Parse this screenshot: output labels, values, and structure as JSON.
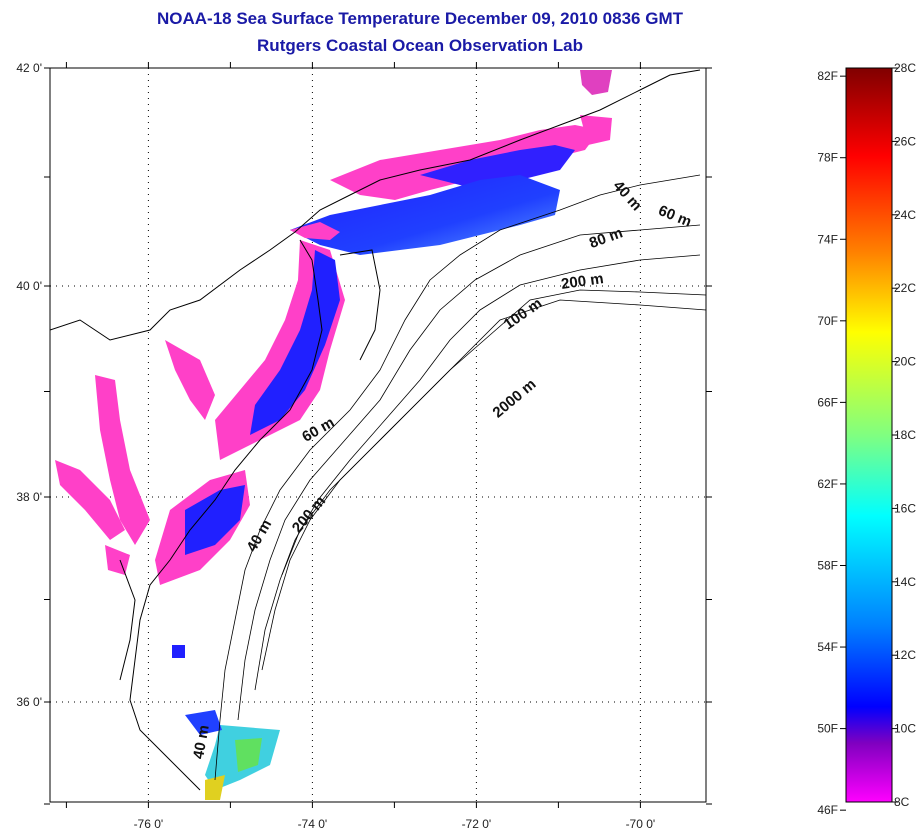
{
  "title": {
    "line1": "NOAA-18 Sea Surface Temperature December 09, 2010 0836 GMT",
    "line2": "Rutgers Coastal Ocean Observation Lab"
  },
  "axes": {
    "x_ticks": [
      {
        "lon": -76,
        "label": "-76 0'"
      },
      {
        "lon": -74,
        "label": "-74 0'"
      },
      {
        "lon": -72,
        "label": "-72 0'"
      },
      {
        "lon": -70,
        "label": "-70 0'"
      }
    ],
    "y_ticks": [
      {
        "lat": 42,
        "label": "42 0'"
      },
      {
        "lat": 40,
        "label": "40 0'"
      },
      {
        "lat": 38,
        "label": "38 0'"
      },
      {
        "lat": 36,
        "label": "36 0'"
      }
    ],
    "lon_range": [
      -77,
      -69
    ],
    "lat_range": [
      35,
      42
    ]
  },
  "contour_labels": [
    {
      "text": "40 m",
      "lon": -70.2,
      "lat": 40.8,
      "angle": 48
    },
    {
      "text": "60 m",
      "lon": -69.6,
      "lat": 40.6,
      "angle": 22
    },
    {
      "text": "80 m",
      "lon": -70.4,
      "lat": 40.4,
      "angle": -20
    },
    {
      "text": "200 m",
      "lon": -70.7,
      "lat": 40.0,
      "angle": -8
    },
    {
      "text": "100 m",
      "lon": -71.4,
      "lat": 39.7,
      "angle": -35
    },
    {
      "text": "2000 m",
      "lon": -71.5,
      "lat": 38.9,
      "angle": -40
    },
    {
      "text": "60 m",
      "lon": -73.9,
      "lat": 38.6,
      "angle": -30
    },
    {
      "text": "200 m",
      "lon": -74.0,
      "lat": 37.8,
      "angle": -50
    },
    {
      "text": "40 m",
      "lon": -74.6,
      "lat": 37.6,
      "angle": -60
    },
    {
      "text": "40 m",
      "lon": -75.3,
      "lat": 35.6,
      "angle": -80
    }
  ],
  "colorbar": {
    "f_labels": [
      "82F",
      "78F",
      "74F",
      "70F",
      "66F",
      "62F",
      "58F",
      "54F",
      "50F",
      "46F"
    ],
    "f_values": [
      82,
      78,
      74,
      70,
      66,
      62,
      58,
      54,
      50,
      46
    ],
    "c_labels": [
      "28C",
      "26C",
      "24C",
      "22C",
      "20C",
      "18C",
      "16C",
      "14C",
      "12C",
      "10C",
      "8C"
    ],
    "c_values": [
      28,
      26,
      24,
      22,
      20,
      18,
      16,
      14,
      12,
      10,
      8
    ],
    "range_c": [
      8,
      28
    ],
    "gradient": [
      "#800000",
      "#ff0000",
      "#ff8000",
      "#ffff00",
      "#80ff80",
      "#00ffff",
      "#0080ff",
      "#0000ff",
      "#8000c0",
      "#ff00ff"
    ]
  },
  "colors": {
    "title": "#1a1aa6",
    "sst_cold": "#ff30c0",
    "sst_blue": "#2020ff",
    "sst_warm": "#40e040"
  }
}
